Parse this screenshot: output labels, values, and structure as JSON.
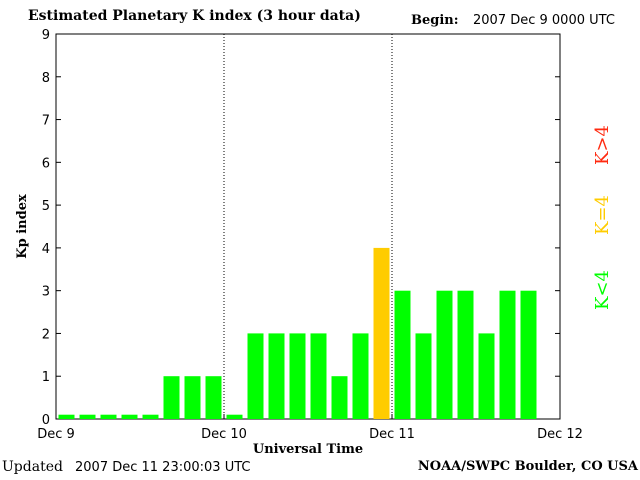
{
  "header": {
    "title": "Estimated Planetary K index (3 hour data)",
    "begin_label": "Begin:",
    "begin_value": "2007 Dec 9 0000 UTC"
  },
  "footer": {
    "updated_label": "Updated",
    "updated_value": "2007 Dec 11 23:00:03 UTC",
    "source": "NOAA/SWPC Boulder, CO USA"
  },
  "legend": {
    "items": [
      {
        "label": "K>4",
        "color": "#ff2a10"
      },
      {
        "label": "K=4",
        "color": "#ffcc00"
      },
      {
        "label": "K<4",
        "color": "#00ff00"
      }
    ]
  },
  "colors": {
    "below_4": "#00ff00",
    "equal_4": "#ffcc00",
    "above_4": "#ff2a10"
  },
  "chart_data": {
    "type": "bar",
    "xlabel": "Universal Time",
    "ylabel": "Kp index",
    "ylim": [
      0,
      9
    ],
    "yticks": [
      0,
      1,
      2,
      3,
      4,
      5,
      6,
      7,
      8,
      9
    ],
    "day_labels": [
      "Dec 9",
      "Dec 10",
      "Dec 11",
      "Dec 12"
    ],
    "day_dividers": [
      "Dec 10",
      "Dec 11"
    ],
    "values": [
      0.1,
      0.1,
      0.1,
      0.1,
      0.1,
      1,
      1,
      1,
      0.1,
      2,
      2,
      2,
      2,
      1,
      2,
      4,
      3,
      2,
      3,
      3,
      2,
      3,
      3
    ]
  }
}
